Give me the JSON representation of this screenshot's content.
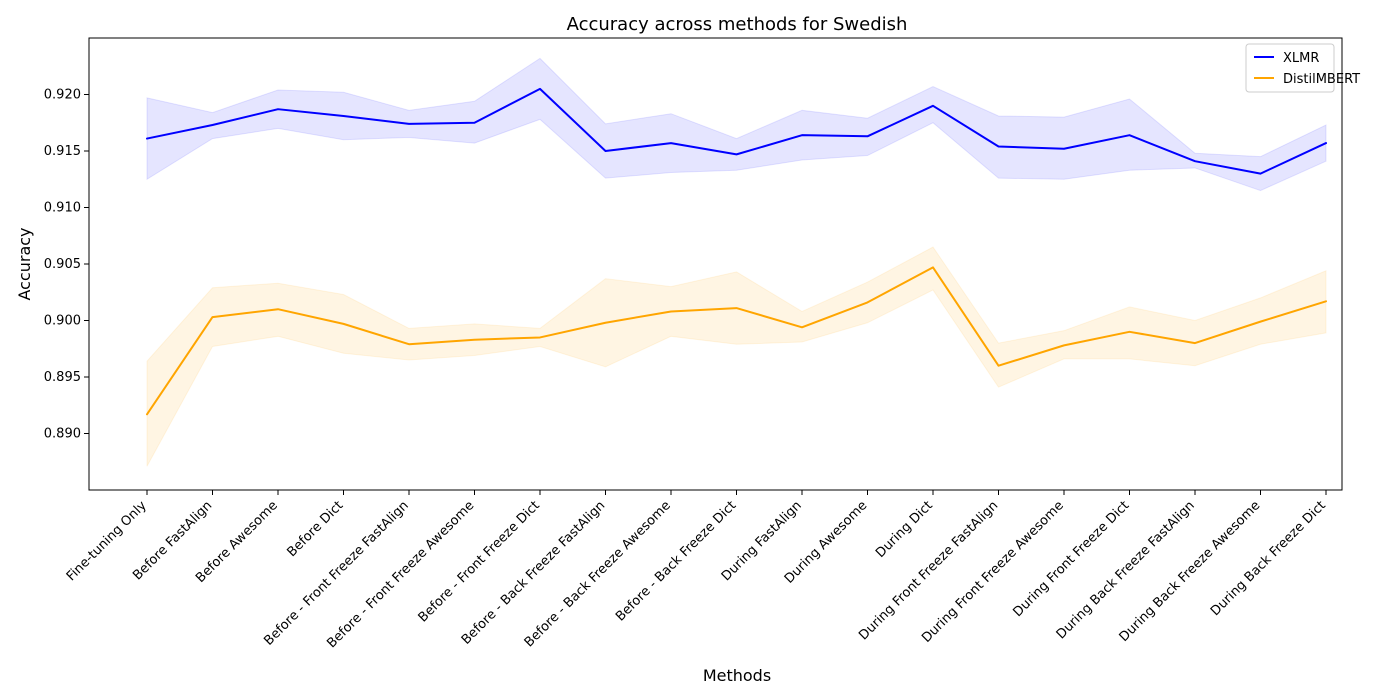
{
  "chart_data": {
    "type": "line",
    "title": "Accuracy across methods for Swedish",
    "xlabel": "Methods",
    "ylabel": "Accuracy",
    "ylim": [
      0.885,
      0.925
    ],
    "yticks": [
      0.89,
      0.895,
      0.9,
      0.905,
      0.91,
      0.915,
      0.92
    ],
    "ytick_labels": [
      "0.890",
      "0.895",
      "0.900",
      "0.905",
      "0.910",
      "0.915",
      "0.920"
    ],
    "grid": false,
    "legend": "top-right",
    "categories": [
      "Fine-tuning Only",
      "Before FastAlign",
      "Before Awesome",
      "Before Dict",
      "Before - Front Freeze FastAlign",
      "Before - Front Freeze Awesome",
      "Before - Front Freeze Dict",
      "Before - Back Freeze FastAlign",
      "Before - Back Freeze Awesome",
      "Before - Back Freeze Dict",
      "During FastAlign",
      "During Awesome",
      "During Dict",
      "During Front Freeze FastAlign",
      "During Front Freeze Awesome",
      "During Front Freeze Dict",
      "During Back Freeze FastAlign",
      "During Back Freeze Awesome",
      "During Back Freeze Dict"
    ],
    "series": [
      {
        "name": "XLMR",
        "color": "#0000ff",
        "fill_color": "#0000ff",
        "values": [
          0.9161,
          0.9173,
          0.9187,
          0.9181,
          0.9174,
          0.9175,
          0.9205,
          0.915,
          0.9157,
          0.9147,
          0.9164,
          0.9163,
          0.919,
          0.9154,
          0.9152,
          0.9164,
          0.9141,
          0.913,
          0.9157
        ],
        "lower": [
          0.9125,
          0.9161,
          0.917,
          0.916,
          0.9162,
          0.9157,
          0.9178,
          0.9126,
          0.9131,
          0.9133,
          0.9142,
          0.9146,
          0.9175,
          0.9126,
          0.9125,
          0.9133,
          0.9135,
          0.9115,
          0.9141
        ],
        "upper": [
          0.9197,
          0.9184,
          0.9204,
          0.9202,
          0.9186,
          0.9194,
          0.9232,
          0.9174,
          0.9183,
          0.9161,
          0.9186,
          0.9179,
          0.9207,
          0.9181,
          0.918,
          0.9196,
          0.9148,
          0.9145,
          0.9173
        ]
      },
      {
        "name": "DistilMBERT",
        "color": "#ffa500",
        "fill_color": "#ffa500",
        "values": [
          0.8917,
          0.9003,
          0.901,
          0.8997,
          0.8979,
          0.8983,
          0.8985,
          0.8998,
          0.9008,
          0.9011,
          0.8994,
          0.9016,
          0.9047,
          0.896,
          0.8978,
          0.899,
          0.898,
          0.8999,
          0.9017
        ],
        "lower": [
          0.8871,
          0.8977,
          0.8986,
          0.8971,
          0.8965,
          0.8969,
          0.8977,
          0.8959,
          0.8986,
          0.8979,
          0.8981,
          0.8998,
          0.9027,
          0.8941,
          0.8966,
          0.8966,
          0.896,
          0.8979,
          0.8989
        ],
        "upper": [
          0.8964,
          0.9029,
          0.9033,
          0.9023,
          0.8993,
          0.8997,
          0.8993,
          0.9037,
          0.903,
          0.9043,
          0.9008,
          0.9034,
          0.9065,
          0.898,
          0.8991,
          0.9012,
          0.9,
          0.902,
          0.9044
        ]
      }
    ]
  }
}
